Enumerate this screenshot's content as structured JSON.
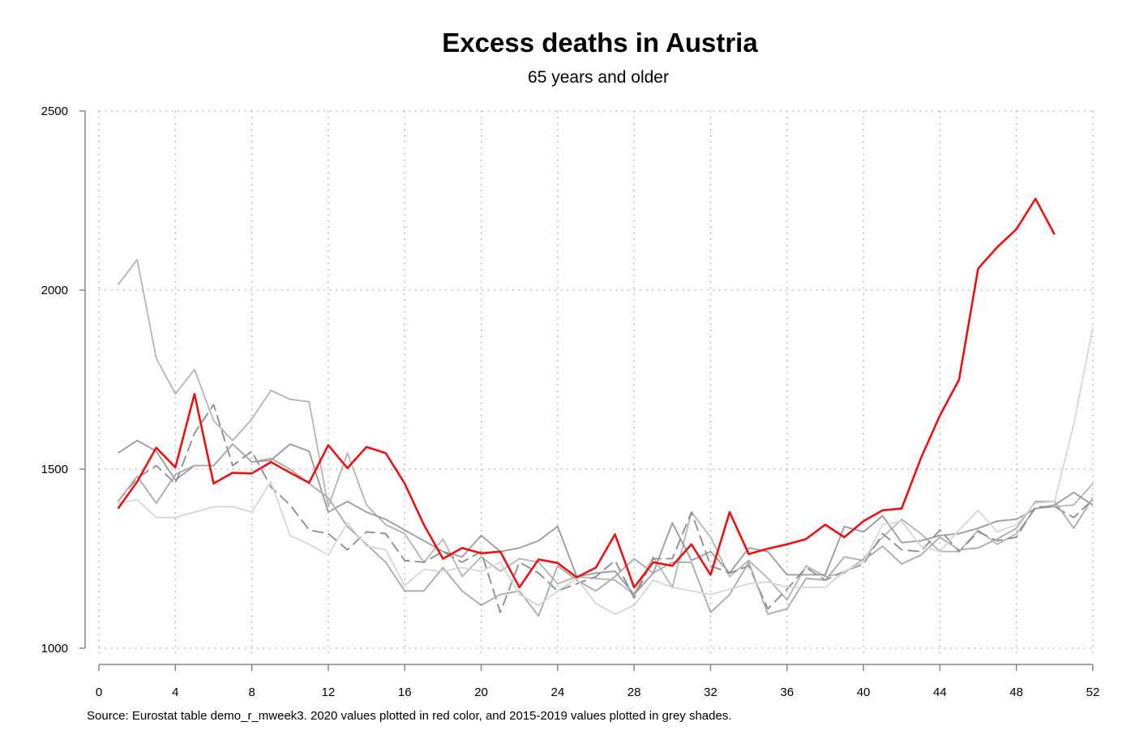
{
  "chart_data": {
    "type": "line",
    "title": "Excess deaths in Austria",
    "subtitle": "65 years and older",
    "source": "Source: Eurostat table demo_r_mweek3. 2020 values plotted in red color, and 2015-2019 values plotted in grey shades.",
    "xlim": [
      0,
      52
    ],
    "ylim": [
      1000,
      2500
    ],
    "xticks": [
      0,
      4,
      8,
      12,
      16,
      20,
      24,
      28,
      32,
      36,
      40,
      44,
      48,
      52
    ],
    "yticks": [
      1000,
      1500,
      2000,
      2500
    ],
    "grid": "dotted",
    "legend": "none",
    "series": [
      {
        "color": "#b4b4b4",
        "dashed": false,
        "values": [
          2015,
          2085,
          1810,
          1710,
          1778,
          1635,
          1580,
          1640,
          1720,
          1695,
          1688,
          1395,
          1545,
          1400,
          1345,
          1320,
          1240,
          1305,
          1200,
          1255,
          1215,
          1250,
          1240,
          1180,
          1200,
          1195,
          1190,
          1150,
          1255,
          1170,
          1380,
          1310,
          1200,
          1245,
          1195,
          1135,
          1230,
          1200,
          1210,
          1250,
          1310,
          1360,
          1320,
          1270,
          1270,
          1330,
          1290,
          1320,
          1390,
          1395,
          1400,
          1460
        ]
      },
      {
        "color": "#9a9a9a",
        "dashed": false,
        "values": [
          1545,
          1580,
          1550,
          1470,
          1510,
          1510,
          1570,
          1520,
          1525,
          1570,
          1550,
          1380,
          1410,
          1380,
          1360,
          1330,
          1300,
          1270,
          1255,
          1315,
          1270,
          1280,
          1300,
          1340,
          1200,
          1210,
          1215,
          1150,
          1210,
          1350,
          1245,
          1270,
          1210,
          1280,
          1270,
          1205,
          1205,
          1205,
          1340,
          1325,
          1370,
          1295,
          1300,
          1315,
          1320,
          1335,
          1355,
          1360,
          1390,
          1400,
          1435,
          1400
        ]
      },
      {
        "color": "#8c8c8c",
        "dashed": true,
        "values": [
          1410,
          1475,
          1510,
          1460,
          1600,
          1680,
          1510,
          1550,
          1450,
          1400,
          1330,
          1320,
          1275,
          1325,
          1320,
          1245,
          1240,
          1270,
          1240,
          1270,
          1100,
          1240,
          1210,
          1160,
          1180,
          1200,
          1245,
          1140,
          1250,
          1250,
          1380,
          1230,
          1210,
          1230,
          1110,
          1165,
          1225,
          1190,
          1215,
          1235,
          1320,
          1275,
          1270,
          1330,
          1270,
          1325,
          1300,
          1310,
          1395,
          1395,
          1365,
          1415
        ]
      },
      {
        "color": "#a9a9a9",
        "dashed": false,
        "values": [
          1410,
          1480,
          1405,
          1485,
          1510,
          1510,
          1570,
          1520,
          1530,
          1500,
          1460,
          1420,
          1340,
          1290,
          1240,
          1160,
          1160,
          1225,
          1160,
          1120,
          1150,
          1160,
          1090,
          1230,
          1190,
          1160,
          1200,
          1250,
          1210,
          1240,
          1240,
          1100,
          1150,
          1240,
          1095,
          1110,
          1195,
          1190,
          1255,
          1245,
          1285,
          1235,
          1260,
          1310,
          1275,
          1280,
          1305,
          1335,
          1410,
          1410,
          1335,
          1420
        ]
      },
      {
        "color": "#d6d6d6",
        "dashed": false,
        "values": [
          1405,
          1415,
          1365,
          1365,
          1380,
          1395,
          1395,
          1380,
          1465,
          1315,
          1290,
          1260,
          1350,
          1285,
          1275,
          1175,
          1220,
          1215,
          1225,
          1215,
          1240,
          1150,
          1120,
          1160,
          1195,
          1125,
          1095,
          1120,
          1190,
          1170,
          1160,
          1150,
          1165,
          1180,
          1185,
          1170,
          1170,
          1170,
          1215,
          1240,
          1345,
          1355,
          1285,
          1270,
          1330,
          1385,
          1325,
          1345,
          1405,
          1410,
          1625,
          1895
        ]
      },
      {
        "color": "#ee1111",
        "dashed": false,
        "values": [
          1390,
          1465,
          1560,
          1505,
          1710,
          1460,
          1490,
          1488,
          1520,
          1490,
          1462,
          1567,
          1503,
          1562,
          1545,
          1460,
          1345,
          1250,
          1280,
          1265,
          1270,
          1170,
          1248,
          1238,
          1198,
          1225,
          1318,
          1170,
          1240,
          1230,
          1290,
          1205,
          1380,
          1263,
          1278,
          1290,
          1305,
          1345,
          1310,
          1355,
          1385,
          1390,
          1530,
          1650,
          1750,
          2060,
          2120,
          2170,
          2255,
          2155
        ]
      }
    ]
  }
}
